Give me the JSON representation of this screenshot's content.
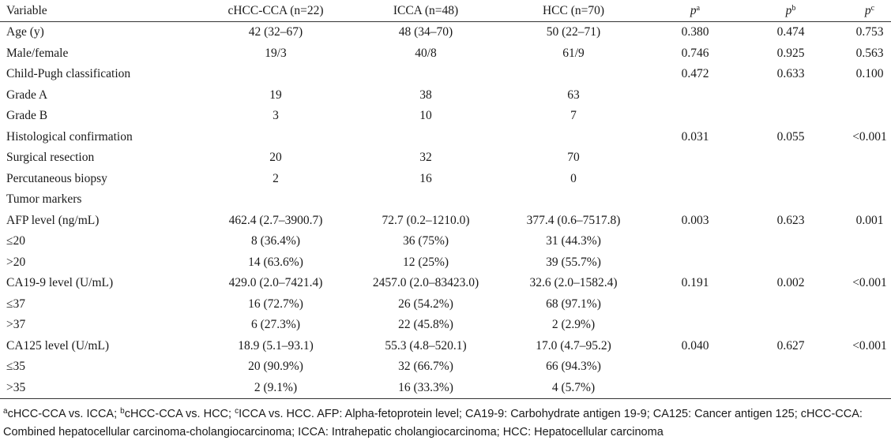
{
  "table": {
    "columns": [
      "Variable",
      "cHCC-CCA (n=22)",
      "ICCA (n=48)",
      "HCC (n=70)",
      "p",
      "p",
      "p"
    ],
    "p_superscripts": [
      "a",
      "b",
      "c"
    ],
    "rows": [
      [
        "Age (y)",
        "42 (32–67)",
        "48 (34–70)",
        "50 (22–71)",
        "0.380",
        "0.474",
        "0.753"
      ],
      [
        "Male/female",
        "19/3",
        "40/8",
        "61/9",
        "0.746",
        "0.925",
        "0.563"
      ],
      [
        "Child-Pugh classification",
        "",
        "",
        "",
        "0.472",
        "0.633",
        "0.100"
      ],
      [
        "Grade A",
        "19",
        "38",
        "63",
        "",
        "",
        ""
      ],
      [
        "Grade B",
        "3",
        "10",
        "7",
        "",
        "",
        ""
      ],
      [
        "Histological confirmation",
        "",
        "",
        "",
        "0.031",
        "0.055",
        "<0.001"
      ],
      [
        "Surgical resection",
        "20",
        "32",
        "70",
        "",
        "",
        ""
      ],
      [
        "Percutaneous biopsy",
        "2",
        "16",
        "0",
        "",
        "",
        ""
      ],
      [
        "Tumor markers",
        "",
        "",
        "",
        "",
        "",
        ""
      ],
      [
        "AFP level (ng/mL)",
        "462.4 (2.7–3900.7)",
        "72.7 (0.2–1210.0)",
        "377.4 (0.6–7517.8)",
        "0.003",
        "0.623",
        "0.001"
      ],
      [
        "≤20",
        "8 (36.4%)",
        "36 (75%)",
        "31 (44.3%)",
        "",
        "",
        ""
      ],
      [
        ">20",
        "14 (63.6%)",
        "12 (25%)",
        "39 (55.7%)",
        "",
        "",
        ""
      ],
      [
        "CA19-9 level (U/mL)",
        "429.0 (2.0–7421.4)",
        "2457.0 (2.0–83423.0)",
        "32.6 (2.0–1582.4)",
        "0.191",
        "0.002",
        "<0.001"
      ],
      [
        "≤37",
        "16 (72.7%)",
        "26 (54.2%)",
        "68 (97.1%)",
        "",
        "",
        ""
      ],
      [
        ">37",
        "6 (27.3%)",
        "22 (45.8%)",
        "2 (2.9%)",
        "",
        "",
        ""
      ],
      [
        "CA125 level (U/mL)",
        "18.9 (5.1–93.1)",
        "55.3 (4.8–520.1)",
        "17.0 (4.7–95.2)",
        "0.040",
        "0.627",
        "<0.001"
      ],
      [
        "≤35",
        "20 (90.9%)",
        "32 (66.7%)",
        "66 (94.3%)",
        "",
        "",
        ""
      ],
      [
        ">35",
        "2 (9.1%)",
        "16 (33.3%)",
        "4 (5.7%)",
        "",
        "",
        ""
      ]
    ]
  },
  "footnote": {
    "items": [
      {
        "sup": "a",
        "text": "cHCC-CCA vs. ICCA; "
      },
      {
        "sup": "b",
        "text": "cHCC-CCA vs. HCC; "
      },
      {
        "sup": "c",
        "text": "ICCA vs. HCC. AFP: Alpha-fetoprotein level; CA19-9: Carbohydrate antigen 19-9; CA125: Cancer antigen 125; cHCC-CCA: Combined hepatocellular carcinoma-cholangiocarcinoma; ICCA: Intrahepatic cholangiocarcinoma; HCC: Hepatocellular carcinoma"
      }
    ]
  }
}
